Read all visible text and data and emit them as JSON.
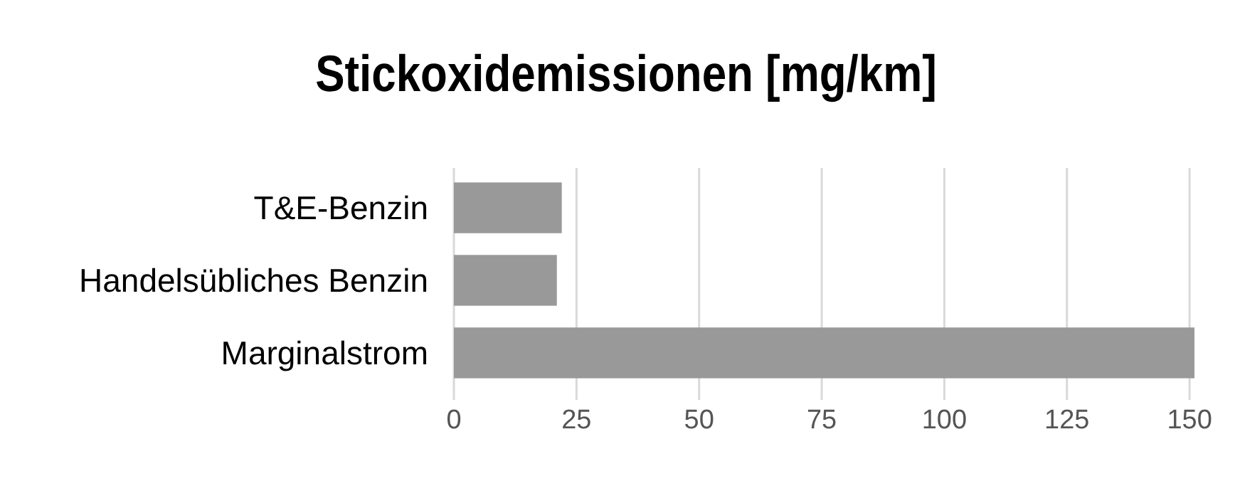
{
  "chart_data": {
    "type": "bar",
    "orientation": "horizontal",
    "title": "Stickoxidemissionen [mg/km]",
    "categories": [
      "T&E-Benzin",
      "Handelsübliches Benzin",
      "Marginalstrom"
    ],
    "values": [
      22,
      21,
      151
    ],
    "color": "#999999",
    "xlim": [
      0,
      151
    ],
    "xticks": [
      0,
      25,
      50,
      75,
      100,
      125,
      150
    ],
    "grid": "x"
  }
}
